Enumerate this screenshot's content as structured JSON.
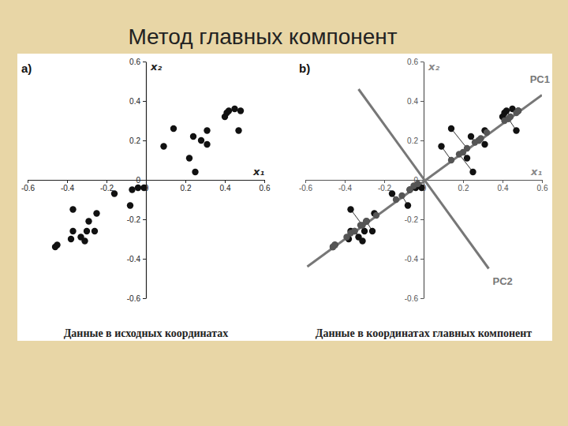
{
  "page_title": "Метод главных компонент",
  "chart_data": [
    {
      "type": "scatter",
      "label": "a)",
      "subtitle": "Данные в исходных координатах",
      "xlabel": "x₁",
      "ylabel": "x₂",
      "xlim": [
        -0.6,
        0.6
      ],
      "ylim": [
        -0.6,
        0.6
      ],
      "xticks": [
        -0.6,
        -0.4,
        -0.2,
        0,
        0.2,
        0.4,
        0.6
      ],
      "yticks": [
        -0.6,
        -0.4,
        -0.2,
        0,
        0.2,
        0.4,
        0.6
      ],
      "series": [
        {
          "type": "scatter",
          "color": "#111111",
          "marker": "circle",
          "x": [
            -0.46,
            -0.45,
            -0.38,
            -0.37,
            -0.37,
            -0.33,
            -0.31,
            -0.3,
            -0.29,
            -0.25,
            -0.26,
            -0.16,
            -0.08,
            -0.07,
            -0.04,
            -0.01,
            0.09,
            0.14,
            0.22,
            0.24,
            0.25,
            0.28,
            0.31,
            0.31,
            0.4,
            0.41,
            0.42,
            0.45,
            0.47,
            0.48
          ],
          "y": [
            -0.34,
            -0.33,
            -0.3,
            -0.26,
            -0.15,
            -0.29,
            -0.31,
            -0.26,
            -0.21,
            -0.17,
            -0.26,
            -0.07,
            -0.13,
            -0.05,
            -0.04,
            -0.04,
            0.17,
            0.26,
            0.11,
            0.22,
            0.04,
            0.2,
            0.25,
            0.18,
            0.32,
            0.34,
            0.35,
            0.36,
            0.25,
            0.35
          ]
        }
      ]
    },
    {
      "type": "scatter",
      "label": "b)",
      "subtitle": "Данные в координатах главных компонент",
      "xlabel": "x₁",
      "ylabel": "x₂",
      "xlim": [
        -0.6,
        0.6
      ],
      "ylim": [
        -0.6,
        0.6
      ],
      "xticks": [
        -0.6,
        -0.4,
        -0.2,
        0,
        0.2,
        0.4,
        0.6
      ],
      "yticks": [
        -0.6,
        -0.4,
        -0.2,
        0,
        0.2,
        0.4,
        0.6
      ],
      "series": [
        {
          "type": "scatter",
          "color": "#111111",
          "marker": "circle",
          "x": [
            -0.46,
            -0.45,
            -0.38,
            -0.37,
            -0.37,
            -0.33,
            -0.31,
            -0.3,
            -0.29,
            -0.25,
            -0.26,
            -0.16,
            -0.08,
            -0.07,
            -0.04,
            -0.01,
            0.09,
            0.14,
            0.22,
            0.24,
            0.25,
            0.28,
            0.31,
            0.31,
            0.4,
            0.41,
            0.42,
            0.45,
            0.47,
            0.48
          ],
          "y": [
            -0.34,
            -0.33,
            -0.3,
            -0.26,
            -0.15,
            -0.29,
            -0.31,
            -0.26,
            -0.21,
            -0.17,
            -0.26,
            -0.07,
            -0.13,
            -0.05,
            -0.04,
            -0.04,
            0.17,
            0.26,
            0.11,
            0.22,
            0.04,
            0.2,
            0.25,
            0.18,
            0.32,
            0.34,
            0.35,
            0.36,
            0.25,
            0.35
          ]
        },
        {
          "type": "scatter",
          "color": "#555555",
          "marker": "circle",
          "x": [
            -0.46,
            -0.45,
            -0.39,
            -0.37,
            -0.31,
            -0.35,
            -0.35,
            -0.32,
            -0.29,
            -0.24,
            -0.29,
            -0.14,
            -0.11,
            -0.07,
            -0.05,
            -0.03,
            0.14,
            0.22,
            0.2,
            0.26,
            0.18,
            0.28,
            0.32,
            0.29,
            0.41,
            0.43,
            0.44,
            0.47,
            0.43,
            0.48
          ],
          "y": [
            -0.34,
            -0.33,
            -0.29,
            -0.27,
            -0.23,
            -0.26,
            -0.26,
            -0.23,
            -0.21,
            -0.18,
            -0.21,
            -0.1,
            -0.08,
            -0.05,
            -0.03,
            -0.02,
            0.1,
            0.16,
            0.14,
            0.19,
            0.13,
            0.2,
            0.24,
            0.21,
            0.3,
            0.31,
            0.32,
            0.34,
            0.31,
            0.35
          ]
        },
        {
          "type": "line",
          "name": "PC1",
          "color": "#777777",
          "line_style": "solid",
          "x": [
            -0.59,
            0.6
          ],
          "y": [
            -0.44,
            0.43
          ]
        },
        {
          "type": "line",
          "name": "PC2",
          "color": "#777777",
          "line_style": "solid",
          "x": [
            -0.33,
            0.33
          ],
          "y": [
            0.46,
            -0.45
          ]
        }
      ]
    }
  ]
}
